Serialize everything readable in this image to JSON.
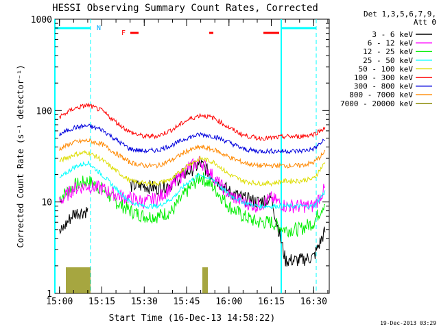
{
  "chart_data": {
    "type": "line",
    "title": "HESSI Observing Summary Count Rates, Corrected",
    "xlabel": "Start Time (16-Dec-13 14:58:22)",
    "ylabel": "Corrected Count Rate (s⁻¹ detector⁻¹)",
    "y_scale": "log",
    "ylim": [
      1,
      1000
    ],
    "xlim": [
      "14:58:22",
      "16:35:30"
    ],
    "x_ticks": [
      "15:00",
      "15:15",
      "15:30",
      "15:45",
      "16:00",
      "16:15",
      "16:30"
    ],
    "y_ticks": [
      "1",
      "10",
      "100",
      "1000"
    ],
    "x": [
      "15:00",
      "15:05",
      "15:10",
      "15:15",
      "15:20",
      "15:25",
      "15:30",
      "15:35",
      "15:40",
      "15:45",
      "15:50",
      "15:55",
      "16:00",
      "16:05",
      "16:10",
      "16:15",
      "16:20",
      "16:25",
      "16:30",
      "16:34"
    ],
    "legend_title": [
      "Det 1,3,5,6,7,9,",
      "Att 0"
    ],
    "series": [
      {
        "name": "3 - 6 keV",
        "color": "#000000",
        "values": [
          4.5,
          7.5,
          8,
          null,
          null,
          15,
          15,
          14,
          16,
          21,
          26,
          18,
          13,
          11,
          10,
          11,
          2.3,
          2.3,
          2.5,
          4.8
        ]
      },
      {
        "name": "6 - 12 keV",
        "color": "#ff00ff",
        "values": [
          10,
          14,
          15,
          14,
          12,
          11,
          10,
          11,
          15,
          23,
          28,
          18,
          12,
          10,
          9,
          11,
          9,
          9,
          9,
          14
        ]
      },
      {
        "name": "12 - 25 keV",
        "color": "#00ee00",
        "values": [
          11,
          15,
          17,
          14,
          10,
          8,
          7,
          7,
          8,
          13,
          19,
          14,
          9,
          7,
          6,
          6,
          5,
          5,
          6,
          10
        ]
      },
      {
        "name": "25 - 50 keV",
        "color": "#00ffff",
        "values": [
          18,
          24,
          27,
          20,
          14,
          10,
          9,
          9,
          11,
          16,
          20,
          17,
          12,
          10,
          9,
          9,
          9,
          9,
          9,
          13
        ]
      },
      {
        "name": "50 - 100 keV",
        "color": "#dddd00",
        "values": [
          28,
          33,
          35,
          29,
          22,
          17,
          16,
          16,
          18,
          25,
          30,
          27,
          20,
          17,
          16,
          16,
          17,
          17,
          18,
          27
        ]
      },
      {
        "name": "100 - 300 keV",
        "color": "#ff0000",
        "values": [
          85,
          105,
          115,
          100,
          75,
          58,
          52,
          53,
          62,
          78,
          90,
          82,
          65,
          54,
          50,
          50,
          52,
          52,
          55,
          65
        ]
      },
      {
        "name": "300 - 800 keV",
        "color": "#0000dd",
        "values": [
          55,
          65,
          68,
          62,
          48,
          38,
          36,
          37,
          42,
          50,
          55,
          52,
          45,
          38,
          36,
          36,
          36,
          36,
          38,
          48
        ]
      },
      {
        "name": "800 - 7000 keV",
        "color": "#ff8800",
        "values": [
          38,
          45,
          47,
          43,
          34,
          27,
          25,
          25,
          29,
          36,
          40,
          37,
          31,
          27,
          25,
          25,
          25,
          25,
          27,
          35
        ]
      },
      {
        "name": "7000 - 20000 keV",
        "color": "#888800",
        "values": [
          null,
          null,
          null,
          null,
          null,
          null,
          null,
          null,
          null,
          null,
          null,
          null,
          null,
          null,
          null,
          null,
          null,
          null,
          null,
          null
        ]
      }
    ],
    "annotations": {
      "night_label": "N",
      "flare_label": "F",
      "grid": false
    }
  },
  "footer": {
    "datestamp": "19-Dec-2013 03:29"
  }
}
